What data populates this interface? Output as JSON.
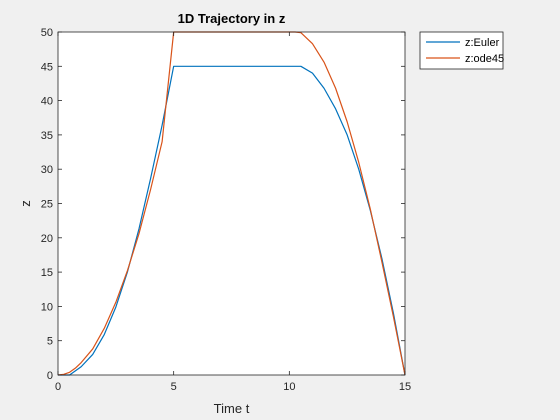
{
  "chart_data": {
    "type": "line",
    "title": "1D Trajectory in z",
    "xlabel": "Time t",
    "ylabel": "z",
    "xlim": [
      0,
      15
    ],
    "ylim": [
      0,
      50
    ],
    "xticks": [
      0,
      5,
      10,
      15
    ],
    "yticks": [
      0,
      5,
      10,
      15,
      20,
      25,
      30,
      35,
      40,
      45,
      50
    ],
    "grid": false,
    "legend_position": "outside-top-right",
    "series": [
      {
        "name": "z:Euler",
        "color": "#0072BD",
        "x": [
          0,
          0.5,
          1,
          1.5,
          2,
          2.5,
          3,
          3.5,
          4,
          4.5,
          5,
          5.5,
          6,
          6.5,
          7,
          7.5,
          8,
          8.5,
          9,
          9.5,
          10,
          10.5,
          11,
          11.5,
          12,
          12.5,
          13,
          13.5,
          14,
          14.5,
          15
        ],
        "y": [
          0,
          0,
          1.2,
          3.0,
          5.9,
          9.9,
          15.0,
          21.3,
          28.6,
          36.4,
          45,
          45,
          45,
          45,
          45,
          45,
          45,
          45,
          45,
          45,
          45,
          45,
          44.0,
          41.8,
          38.8,
          35.0,
          30.0,
          24.0,
          17.0,
          9.0,
          0
        ]
      },
      {
        "name": "z:ode45",
        "color": "#D95319",
        "x": [
          0,
          0.25,
          0.5,
          0.75,
          1,
          1.5,
          2,
          2.5,
          3,
          3.5,
          4,
          4.5,
          5,
          5.5,
          6,
          7,
          8,
          9,
          10,
          10.25,
          10.5,
          11,
          11.5,
          12,
          12.5,
          13,
          13.5,
          14,
          14.5,
          15
        ],
        "y": [
          0,
          0.1,
          0.4,
          1.0,
          1.8,
          3.8,
          6.8,
          10.6,
          15.2,
          20.6,
          27.0,
          34.0,
          50,
          50,
          50,
          50,
          50,
          50,
          50,
          50,
          49.9,
          48.3,
          45.6,
          41.8,
          36.9,
          31.0,
          24.2,
          16.5,
          8.5,
          0
        ]
      }
    ]
  }
}
